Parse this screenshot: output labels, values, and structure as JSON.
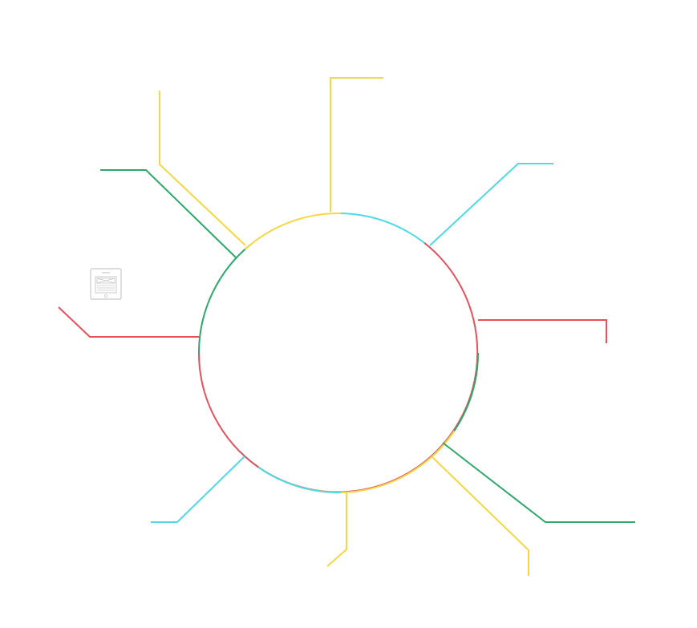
{
  "diagram": {
    "colors": {
      "yellow": "#F5D742",
      "cyan": "#4FD8E6",
      "red": "#E8505B",
      "green": "#2EA86B",
      "icon": "#C8C8C8"
    },
    "ring_segments": [
      {
        "name": "ring-arc-cyan-top",
        "color_key": "cyan"
      },
      {
        "name": "ring-arc-red-right",
        "color_key": "red"
      },
      {
        "name": "ring-arc-green-lower-right",
        "color_key": "green"
      },
      {
        "name": "ring-arc-yellow-bottom",
        "color_key": "yellow"
      },
      {
        "name": "ring-arc-cyan-bottom",
        "color_key": "cyan"
      },
      {
        "name": "ring-arc-red-left",
        "color_key": "red"
      },
      {
        "name": "ring-arc-green-left",
        "color_key": "green"
      },
      {
        "name": "ring-arc-yellow-top",
        "color_key": "yellow"
      }
    ],
    "connectors": [
      {
        "name": "connector-yellow-top-left",
        "color_key": "yellow"
      },
      {
        "name": "connector-yellow-top",
        "color_key": "yellow"
      },
      {
        "name": "connector-cyan-top-right",
        "color_key": "cyan"
      },
      {
        "name": "connector-red-right",
        "color_key": "red"
      },
      {
        "name": "connector-green-bottom-right",
        "color_key": "green"
      },
      {
        "name": "connector-yellow-bottom",
        "color_key": "yellow"
      },
      {
        "name": "connector-yellow-bottom-right",
        "color_key": "yellow"
      },
      {
        "name": "connector-cyan-bottom-left",
        "color_key": "cyan"
      },
      {
        "name": "connector-red-left",
        "color_key": "red"
      },
      {
        "name": "connector-green-top-left",
        "color_key": "green"
      }
    ],
    "icons": [
      {
        "name": "mobile-phone-icon"
      }
    ]
  }
}
